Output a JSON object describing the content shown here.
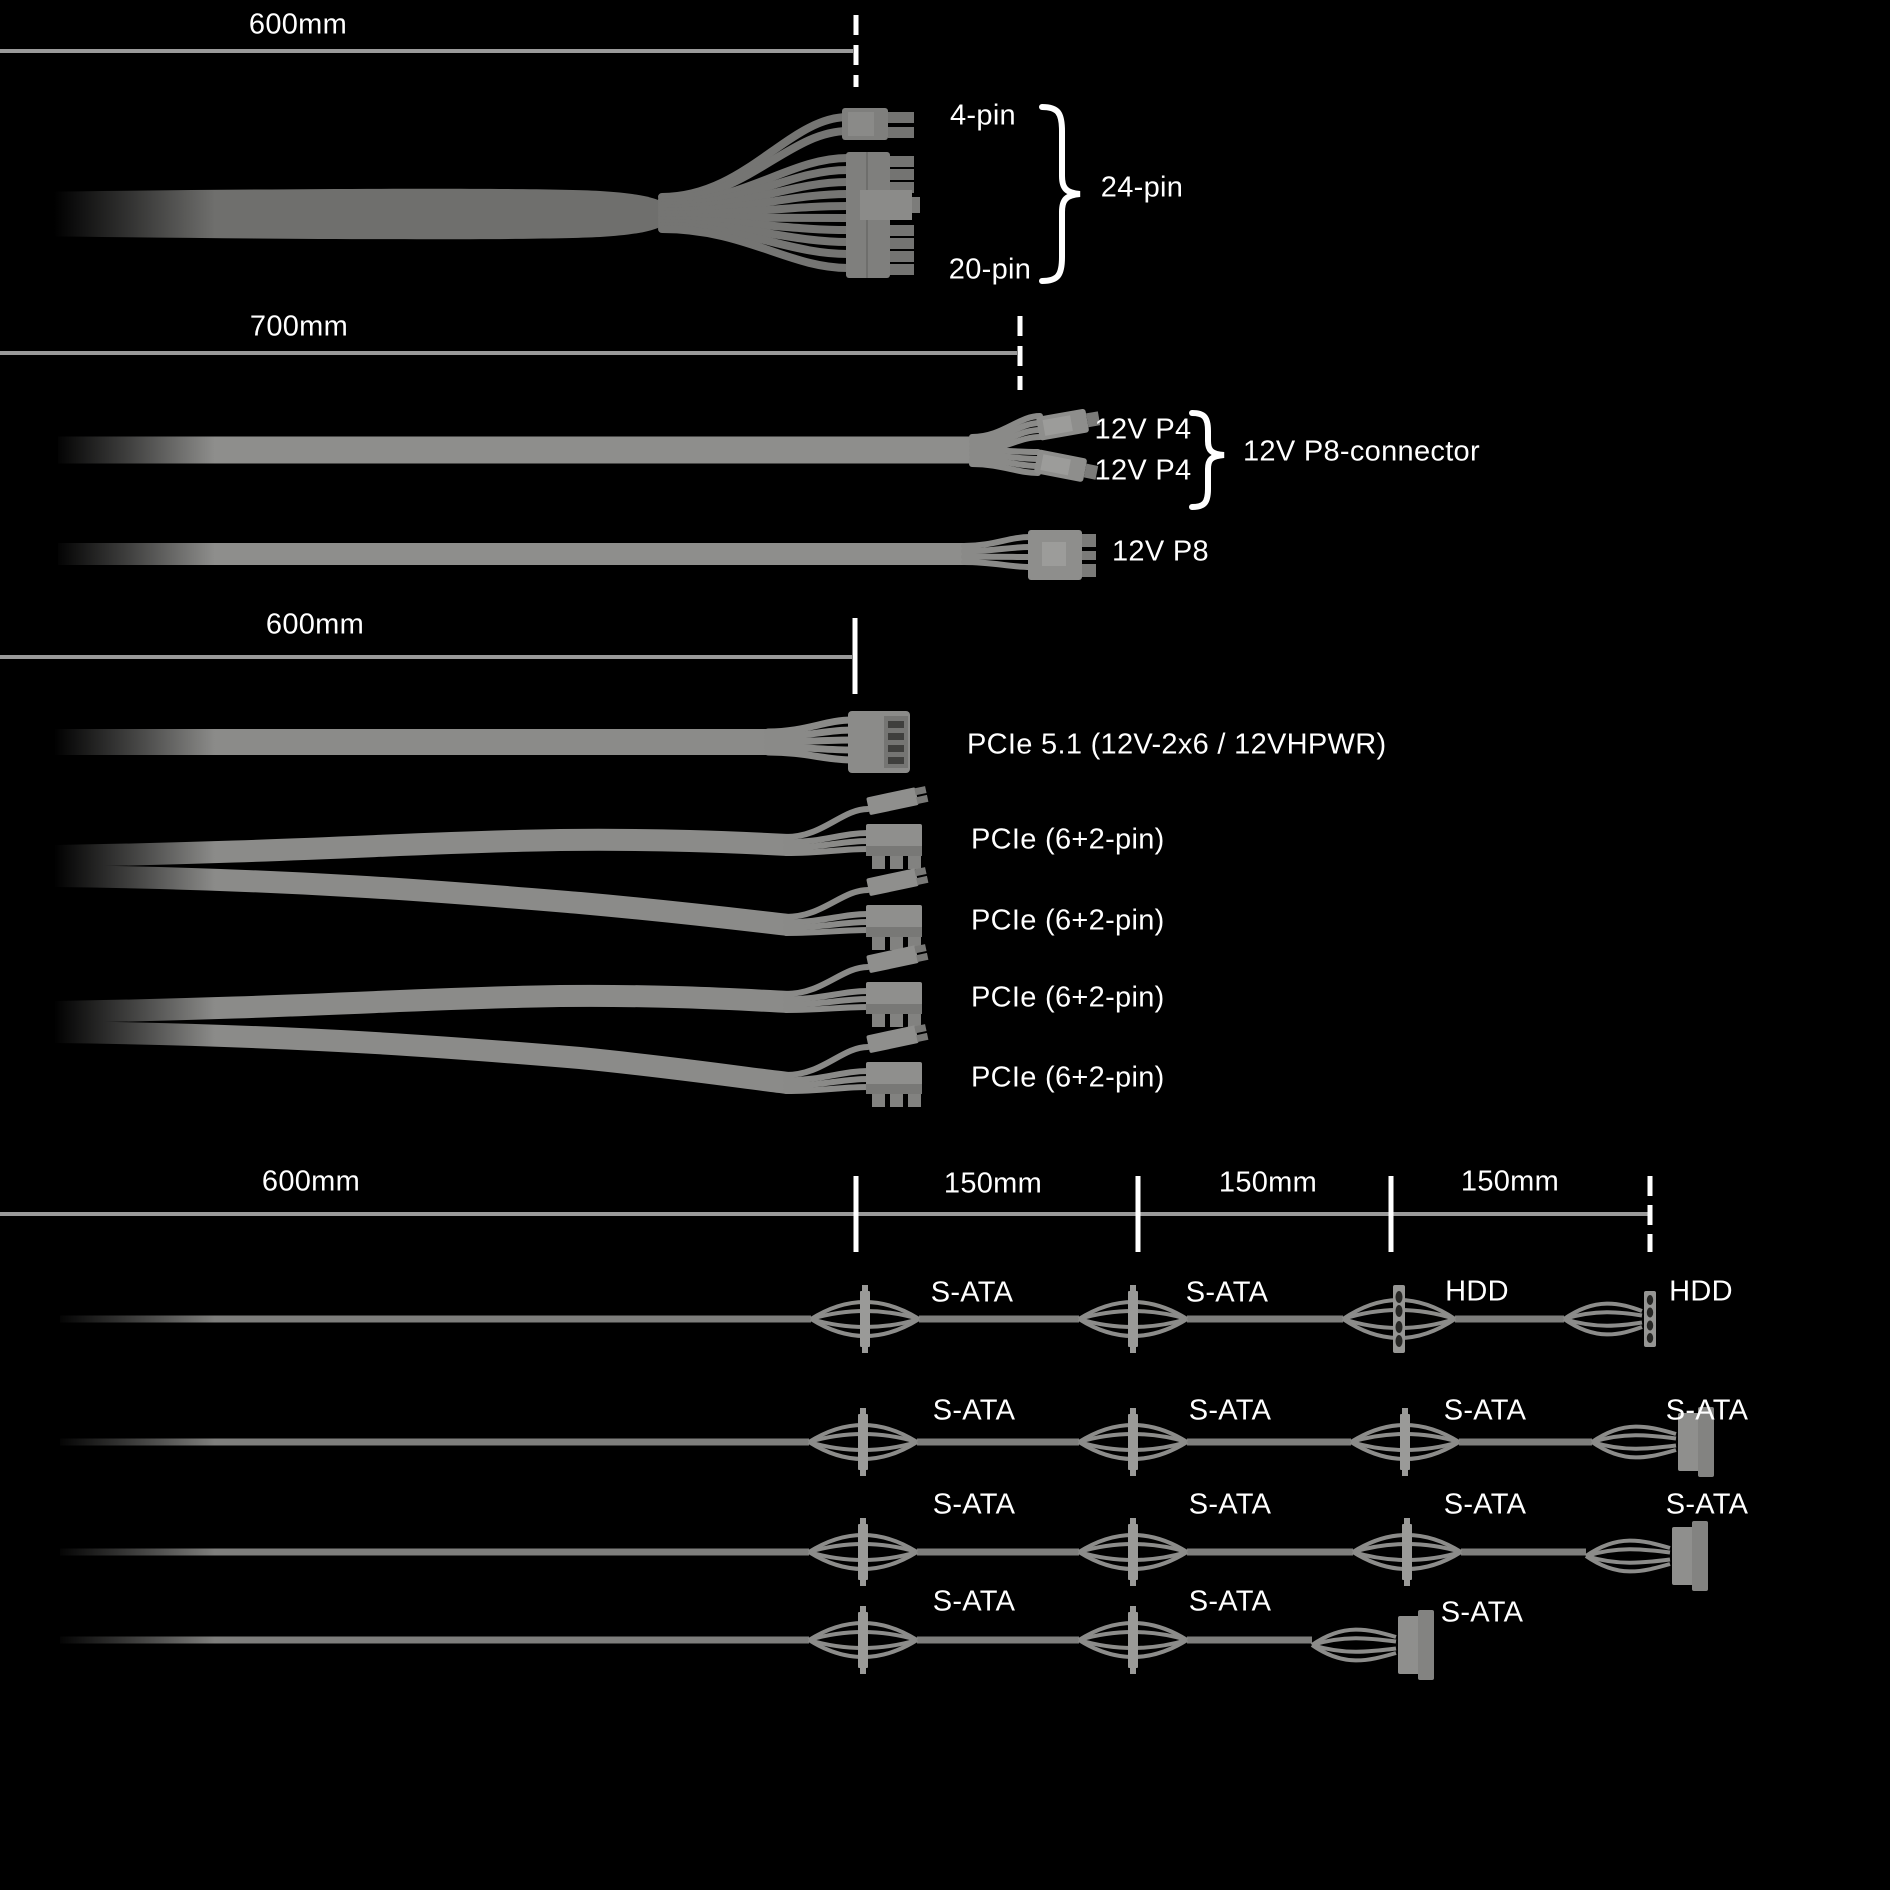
{
  "diagram": {
    "background": "#000000",
    "text_color": "#ffffff",
    "ruler_line_color": "#9a9a9a",
    "tick_color": "#ffffff",
    "cable_color": "#8b8b89",
    "sections": {
      "atx": {
        "ruler_label": "600mm",
        "pin4": "4-pin",
        "pin20": "20-pin",
        "pin24": "24-pin"
      },
      "cpu": {
        "ruler_label": "700mm",
        "p4_top": "12V P4",
        "p4_bottom": "12V P4",
        "p8_brace": "12V P8-connector",
        "p8": "12V P8"
      },
      "pcie": {
        "ruler_label": "600mm",
        "gen5": "PCIe 5.1 (12V-2x6 / 12VHPWR)",
        "plug1": "PCIe (6+2-pin)",
        "plug2": "PCIe (6+2-pin)",
        "plug3": "PCIe (6+2-pin)",
        "plug4": "PCIe (6+2-pin)"
      },
      "sata": {
        "ruler_label": "600mm",
        "seg1": "150mm",
        "seg2": "150mm",
        "seg3": "150mm",
        "row1": [
          "S-ATA",
          "S-ATA",
          "HDD",
          "HDD"
        ],
        "row2": [
          "S-ATA",
          "S-ATA",
          "S-ATA",
          "S-ATA"
        ],
        "row3": [
          "S-ATA",
          "S-ATA",
          "S-ATA",
          "S-ATA"
        ],
        "row4": [
          "S-ATA",
          "S-ATA",
          "S-ATA"
        ]
      }
    }
  }
}
